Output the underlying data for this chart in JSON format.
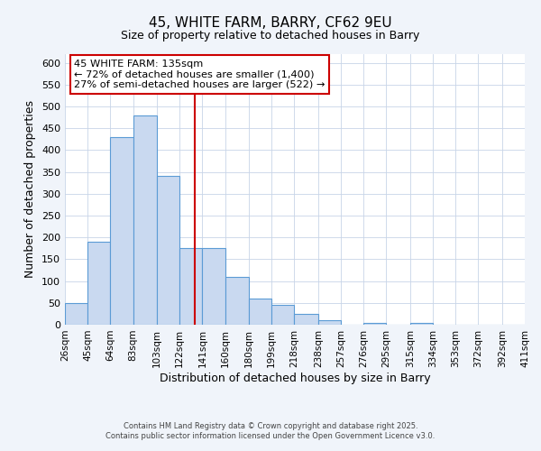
{
  "title": "45, WHITE FARM, BARRY, CF62 9EU",
  "subtitle": "Size of property relative to detached houses in Barry",
  "xlabel": "Distribution of detached houses by size in Barry",
  "ylabel": "Number of detached properties",
  "bar_heights": [
    50,
    190,
    430,
    480,
    340,
    175,
    175,
    110,
    60,
    45,
    25,
    10,
    0,
    5,
    0,
    5,
    0,
    0,
    0,
    0
  ],
  "bin_edges": [
    26,
    45,
    64,
    83,
    103,
    122,
    141,
    160,
    180,
    199,
    218,
    238,
    257,
    276,
    295,
    315,
    334,
    353,
    372,
    392,
    411
  ],
  "tick_labels": [
    "26sqm",
    "45sqm",
    "64sqm",
    "83sqm",
    "103sqm",
    "122sqm",
    "141sqm",
    "160sqm",
    "180sqm",
    "199sqm",
    "218sqm",
    "238sqm",
    "257sqm",
    "276sqm",
    "295sqm",
    "315sqm",
    "334sqm",
    "353sqm",
    "372sqm",
    "392sqm",
    "411sqm"
  ],
  "bar_color": "#c9d9f0",
  "bar_edge_color": "#5b9bd5",
  "vline_x": 135,
  "vline_color": "#cc0000",
  "legend_title": "45 WHITE FARM: 135sqm",
  "legend_line1": "← 72% of detached houses are smaller (1,400)",
  "legend_line2": "27% of semi-detached houses are larger (522) →",
  "legend_box_color": "#cc0000",
  "ylim": [
    0,
    620
  ],
  "yticks": [
    0,
    50,
    100,
    150,
    200,
    250,
    300,
    350,
    400,
    450,
    500,
    550,
    600
  ],
  "footer1": "Contains HM Land Registry data © Crown copyright and database right 2025.",
  "footer2": "Contains public sector information licensed under the Open Government Licence v3.0.",
  "bg_color": "#f0f4fa",
  "plot_bg_color": "#ffffff",
  "grid_color": "#c8d4e8"
}
